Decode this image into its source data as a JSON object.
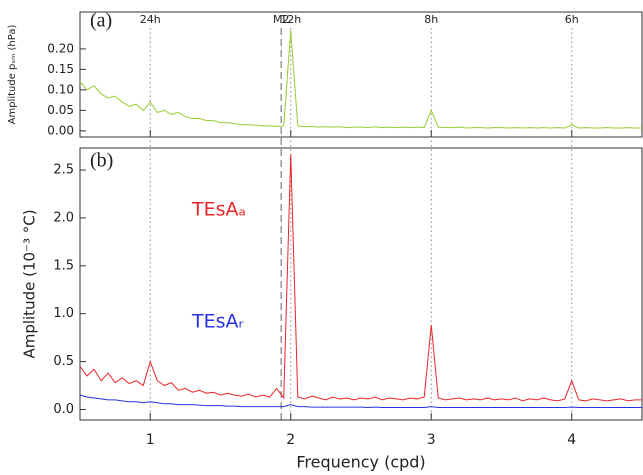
{
  "chart_data": [
    {
      "type": "line",
      "panel_label": "(a)",
      "y_label": "Amplitude pₛₘ (hPa)",
      "xlim": [
        0.5,
        4.5
      ],
      "xticks": [
        1,
        2,
        3,
        4
      ],
      "ylim": [
        -0.015,
        0.29
      ],
      "yticks": [
        {
          "value": 0,
          "label": "0.00"
        },
        0.05,
        {
          "value": 0.1,
          "label": "0.10"
        },
        0.15,
        {
          "value": 0.2,
          "label": "0.20"
        }
      ],
      "annotations": [
        {
          "label": "24h",
          "x": 1
        },
        {
          "label": "M2",
          "x": 1.932,
          "style": "dashed"
        },
        {
          "label": "12h",
          "x": 2
        },
        {
          "label": "8h",
          "x": 3
        },
        {
          "label": "6h",
          "x": 4
        }
      ],
      "x": [
        0.5,
        0.55,
        0.6,
        0.65,
        0.7,
        0.75,
        0.8,
        0.85,
        0.9,
        0.95,
        1,
        1.05,
        1.1,
        1.15,
        1.2,
        1.25,
        1.3,
        1.35,
        1.4,
        1.45,
        1.5,
        1.55,
        1.6,
        1.65,
        1.7,
        1.75,
        1.8,
        1.85,
        1.9,
        1.95,
        2,
        2.05,
        2.1,
        2.15,
        2.2,
        2.25,
        2.3,
        2.35,
        2.4,
        2.45,
        2.5,
        2.55,
        2.6,
        2.65,
        2.7,
        2.75,
        2.8,
        2.85,
        2.9,
        2.95,
        3,
        3.05,
        3.1,
        3.15,
        3.2,
        3.25,
        3.3,
        3.35,
        3.4,
        3.45,
        3.5,
        3.55,
        3.6,
        3.65,
        3.7,
        3.75,
        3.8,
        3.85,
        3.9,
        3.95,
        4,
        4.05,
        4.1,
        4.15,
        4.2,
        4.25,
        4.3,
        4.35,
        4.4,
        4.45,
        4.5
      ],
      "series": [
        {
          "color": "#9acd32",
          "values": [
            0.12,
            0.1,
            0.11,
            0.09,
            0.08,
            0.085,
            0.07,
            0.06,
            0.065,
            0.05,
            0.07,
            0.045,
            0.05,
            0.04,
            0.045,
            0.035,
            0.03,
            0.03,
            0.025,
            0.025,
            0.02,
            0.02,
            0.018,
            0.015,
            0.015,
            0.014,
            0.012,
            0.012,
            0.011,
            0.012,
            0.245,
            0.012,
            0.01,
            0.011,
            0.009,
            0.01,
            0.009,
            0.01,
            0.008,
            0.009,
            0.009,
            0.008,
            0.01,
            0.008,
            0.009,
            0.008,
            0.009,
            0.008,
            0.009,
            0.008,
            0.05,
            0.009,
            0.008,
            0.008,
            0.009,
            0.007,
            0.008,
            0.008,
            0.007,
            0.008,
            0.008,
            0.007,
            0.008,
            0.007,
            0.008,
            0.007,
            0.008,
            0.007,
            0.008,
            0.007,
            0.015,
            0.007,
            0.008,
            0.007,
            0.007,
            0.008,
            0.007,
            0.007,
            0.008,
            0.007,
            0.007
          ]
        }
      ]
    },
    {
      "type": "line",
      "panel_label": "(b)",
      "y_label": "Amplitude (10⁻³ °C)",
      "x_label": "Frequency (cpd)",
      "xlim": [
        0.5,
        4.5
      ],
      "xticks": [
        1,
        2,
        3,
        4
      ],
      "ylim": [
        -0.11,
        2.73
      ],
      "yticks": [
        {
          "value": 0,
          "label": "0.0"
        },
        0.5,
        {
          "value": 1,
          "label": "1.0"
        },
        1.5,
        {
          "value": 2,
          "label": "2.0"
        },
        2.5
      ],
      "x": [
        0.5,
        0.55,
        0.6,
        0.65,
        0.7,
        0.75,
        0.8,
        0.85,
        0.9,
        0.95,
        1,
        1.05,
        1.1,
        1.15,
        1.2,
        1.25,
        1.3,
        1.35,
        1.4,
        1.45,
        1.5,
        1.55,
        1.6,
        1.65,
        1.7,
        1.75,
        1.8,
        1.85,
        1.9,
        1.95,
        2,
        2.05,
        2.1,
        2.15,
        2.2,
        2.25,
        2.3,
        2.35,
        2.4,
        2.45,
        2.5,
        2.55,
        2.6,
        2.65,
        2.7,
        2.75,
        2.8,
        2.85,
        2.9,
        2.95,
        3,
        3.05,
        3.1,
        3.15,
        3.2,
        3.25,
        3.3,
        3.35,
        3.4,
        3.45,
        3.5,
        3.55,
        3.6,
        3.65,
        3.7,
        3.75,
        3.8,
        3.85,
        3.9,
        3.95,
        4,
        4.05,
        4.1,
        4.15,
        4.2,
        4.25,
        4.3,
        4.35,
        4.4,
        4.45,
        4.5
      ],
      "series": [
        {
          "name": "TEsAₐ",
          "color": "#e8262a",
          "values": [
            0.45,
            0.35,
            0.42,
            0.3,
            0.38,
            0.28,
            0.33,
            0.27,
            0.3,
            0.25,
            0.5,
            0.3,
            0.25,
            0.28,
            0.2,
            0.22,
            0.18,
            0.2,
            0.17,
            0.18,
            0.15,
            0.17,
            0.15,
            0.14,
            0.16,
            0.13,
            0.15,
            0.13,
            0.22,
            0.12,
            2.66,
            0.13,
            0.11,
            0.14,
            0.12,
            0.1,
            0.13,
            0.11,
            0.12,
            0.1,
            0.12,
            0.11,
            0.13,
            0.1,
            0.12,
            0.11,
            0.1,
            0.12,
            0.11,
            0.13,
            0.88,
            0.12,
            0.1,
            0.11,
            0.12,
            0.1,
            0.11,
            0.1,
            0.12,
            0.1,
            0.11,
            0.1,
            0.12,
            0.09,
            0.11,
            0.1,
            0.12,
            0.1,
            0.09,
            0.11,
            0.3,
            0.1,
            0.09,
            0.11,
            0.1,
            0.09,
            0.1,
            0.11,
            0.09,
            0.1,
            0.1
          ]
        },
        {
          "name": "TEsAᵣ",
          "color": "#2832e0",
          "values": [
            0.15,
            0.13,
            0.12,
            0.11,
            0.1,
            0.1,
            0.09,
            0.08,
            0.08,
            0.07,
            0.08,
            0.07,
            0.06,
            0.06,
            0.05,
            0.05,
            0.05,
            0.045,
            0.04,
            0.04,
            0.04,
            0.035,
            0.035,
            0.03,
            0.03,
            0.03,
            0.03,
            0.03,
            0.03,
            0.03,
            0.05,
            0.03,
            0.03,
            0.025,
            0.025,
            0.025,
            0.025,
            0.025,
            0.025,
            0.025,
            0.025,
            0.02,
            0.025,
            0.02,
            0.02,
            0.02,
            0.02,
            0.02,
            0.02,
            0.02,
            0.03,
            0.02,
            0.02,
            0.02,
            0.02,
            0.02,
            0.02,
            0.02,
            0.02,
            0.02,
            0.02,
            0.02,
            0.02,
            0.02,
            0.02,
            0.02,
            0.02,
            0.02,
            0.02,
            0.02,
            0.025,
            0.02,
            0.02,
            0.02,
            0.02,
            0.02,
            0.02,
            0.02,
            0.02,
            0.02,
            0.02
          ]
        }
      ]
    }
  ]
}
